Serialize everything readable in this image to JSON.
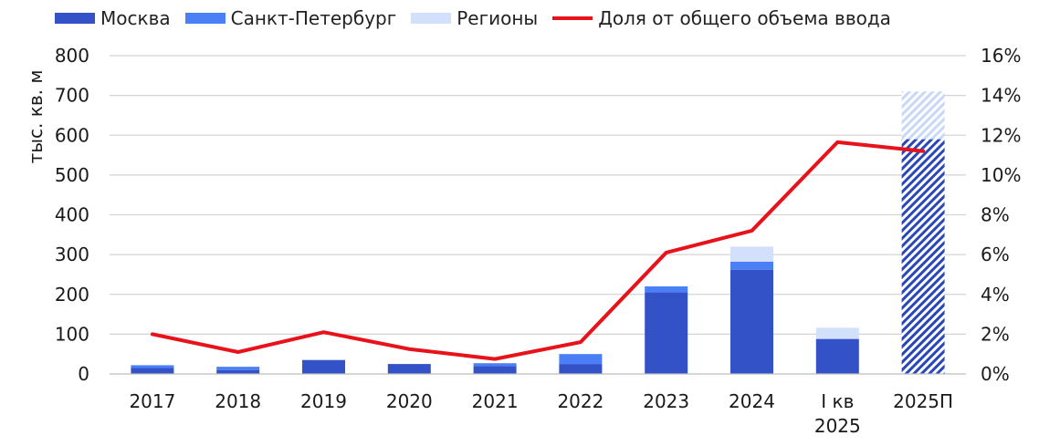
{
  "chart_data": {
    "type": "bar",
    "categories": [
      "2017",
      "2018",
      "2019",
      "2020",
      "2021",
      "2022",
      "2023",
      "2024",
      "I кв 2025",
      "2025П"
    ],
    "category_lines": [
      [
        "2017"
      ],
      [
        "2018"
      ],
      [
        "2019"
      ],
      [
        "2020"
      ],
      [
        "2021"
      ],
      [
        "2022"
      ],
      [
        "2023"
      ],
      [
        "2024"
      ],
      [
        "I кв",
        "2025"
      ],
      [
        "2025П"
      ]
    ],
    "series": [
      {
        "name": "Москва",
        "values": [
          15,
          10,
          35,
          25,
          20,
          25,
          205,
          262,
          88,
          590
        ],
        "color": "#3452c8"
      },
      {
        "name": "Санкт-Петербург",
        "values": [
          7,
          8,
          0,
          0,
          7,
          25,
          15,
          20,
          0,
          0
        ],
        "color": "#4a7ff5"
      },
      {
        "name": "Регионы",
        "values": [
          0,
          0,
          0,
          0,
          0,
          0,
          0,
          38,
          28,
          120
        ],
        "color": "#d3e0fb"
      }
    ],
    "line_series": {
      "name": "Доля от общего объема ввода",
      "values": [
        2.0,
        1.1,
        2.1,
        1.25,
        0.75,
        1.6,
        6.1,
        7.2,
        11.65,
        11.2
      ],
      "color": "#e8121a"
    },
    "forecast_category": "2025П",
    "ylabel": "тыс. кв. м",
    "ylim": [
      0,
      800
    ],
    "yticks": [
      "0",
      "100",
      "200",
      "300",
      "400",
      "500",
      "600",
      "700",
      "800"
    ],
    "y2lim": [
      0,
      16
    ],
    "y2ticks": [
      "0%",
      "2%",
      "4%",
      "6%",
      "8%",
      "10%",
      "12%",
      "14%",
      "16%"
    ],
    "grid": true,
    "legend_position": "top"
  }
}
